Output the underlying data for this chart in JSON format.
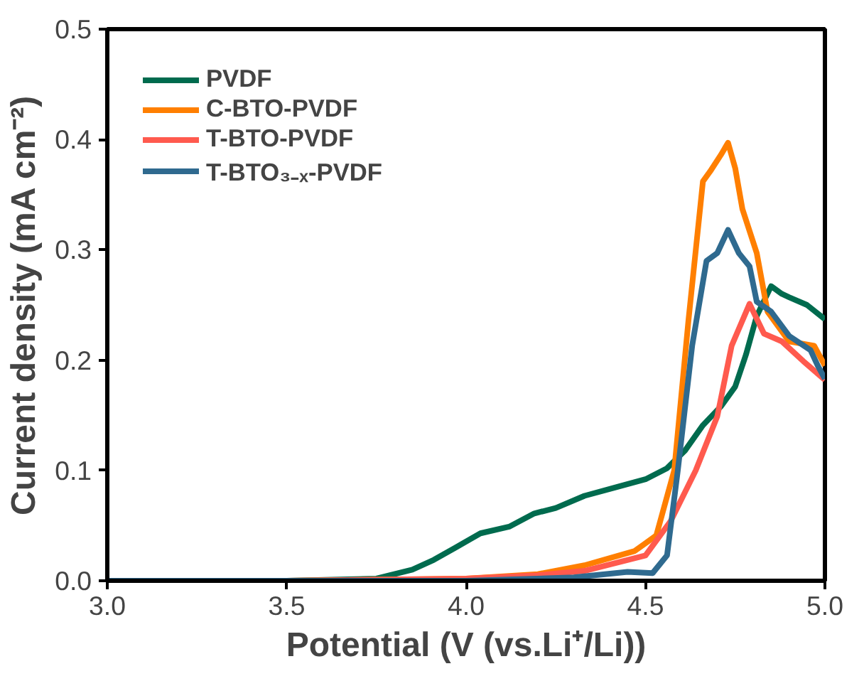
{
  "chart_data": {
    "type": "line",
    "xlabel": "Potential (V (vs.Li⁺/Li))",
    "ylabel": "Current density (mA cm⁻²)",
    "xlim": [
      3.0,
      5.0
    ],
    "ylim": [
      0.0,
      0.5
    ],
    "xticks": [
      {
        "value": 3.0,
        "label": "3.0"
      },
      {
        "value": 3.5,
        "label": "3.5"
      },
      {
        "value": 4.0,
        "label": "4.0"
      },
      {
        "value": 4.5,
        "label": "4.5"
      },
      {
        "value": 5.0,
        "label": "5.0"
      }
    ],
    "yticks": [
      {
        "value": 0.0,
        "label": "0.0"
      },
      {
        "value": 0.1,
        "label": "0.1"
      },
      {
        "value": 0.2,
        "label": "0.2"
      },
      {
        "value": 0.3,
        "label": "0.3"
      },
      {
        "value": 0.4,
        "label": "0.4"
      },
      {
        "value": 0.5,
        "label": "0.5"
      }
    ],
    "legend": "top left",
    "grid": false,
    "line_style": "solid",
    "marker": "none",
    "series": [
      {
        "name": "PVDF",
        "color": "#006b4e",
        "x": [
          3.0,
          3.5,
          3.75,
          3.85,
          3.91,
          3.97,
          4.04,
          4.12,
          4.19,
          4.25,
          4.33,
          4.42,
          4.5,
          4.56,
          4.61,
          4.66,
          4.71,
          4.75,
          4.78,
          4.81,
          4.85,
          4.88,
          4.9,
          4.95,
          5.0
        ],
        "values": [
          0.0,
          0.0,
          0.002,
          0.01,
          0.019,
          0.03,
          0.043,
          0.049,
          0.061,
          0.066,
          0.077,
          0.085,
          0.092,
          0.102,
          0.118,
          0.141,
          0.158,
          0.176,
          0.205,
          0.24,
          0.267,
          0.26,
          0.257,
          0.25,
          0.237
        ]
      },
      {
        "name": "C-BTO-PVDF",
        "color": "#ff7f00",
        "x": [
          3.0,
          3.5,
          4.0,
          4.2,
          4.33,
          4.47,
          4.53,
          4.58,
          4.62,
          4.66,
          4.68,
          4.71,
          4.73,
          4.75,
          4.77,
          4.81,
          4.84,
          4.9,
          4.97,
          5.0
        ],
        "values": [
          0.0,
          0.0,
          0.002,
          0.006,
          0.014,
          0.027,
          0.041,
          0.1,
          0.237,
          0.362,
          0.371,
          0.386,
          0.397,
          0.374,
          0.337,
          0.297,
          0.244,
          0.217,
          0.213,
          0.195
        ]
      },
      {
        "name": "T-BTO-PVDF",
        "color": "#ff5a4e",
        "x": [
          3.0,
          3.5,
          4.0,
          4.2,
          4.33,
          4.5,
          4.57,
          4.64,
          4.7,
          4.74,
          4.79,
          4.83,
          4.88,
          4.94,
          5.0
        ],
        "values": [
          0.0,
          0.0,
          0.002,
          0.005,
          0.009,
          0.023,
          0.054,
          0.1,
          0.149,
          0.213,
          0.251,
          0.224,
          0.217,
          0.199,
          0.182
        ]
      },
      {
        "name": "T-BTO₃₋ₓ-PVDF",
        "color": "#2f6a8f",
        "x": [
          3.0,
          3.5,
          4.0,
          4.3,
          4.45,
          4.52,
          4.56,
          4.59,
          4.63,
          4.67,
          4.7,
          4.73,
          4.76,
          4.79,
          4.81,
          4.85,
          4.9,
          4.96,
          4.98,
          5.0
        ],
        "values": [
          0.0,
          0.0,
          0.0,
          0.003,
          0.008,
          0.007,
          0.023,
          0.1,
          0.213,
          0.29,
          0.297,
          0.318,
          0.297,
          0.285,
          0.253,
          0.244,
          0.222,
          0.209,
          0.195,
          0.183
        ]
      }
    ]
  }
}
